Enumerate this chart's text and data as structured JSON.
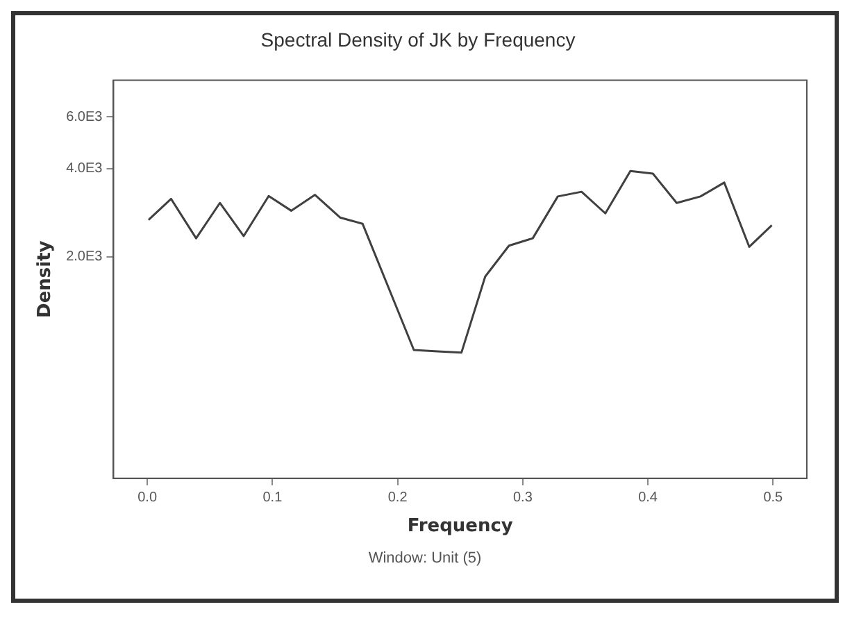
{
  "chart_data": {
    "type": "line",
    "title": "Spectral Density of JK by Frequency",
    "xlabel": "Frequency",
    "ylabel": "Density",
    "annotations": [
      "Window: Unit (5)"
    ],
    "x": [
      0.001,
      0.019,
      0.039,
      0.058,
      0.077,
      0.097,
      0.115,
      0.134,
      0.154,
      0.172,
      0.213,
      0.232,
      0.251,
      0.27,
      0.289,
      0.308,
      0.328,
      0.347,
      0.366,
      0.386,
      0.404,
      0.423,
      0.442,
      0.461,
      0.481,
      0.499
    ],
    "series": [
      {
        "color": "#404040",
        "values": [
          2670,
          3150,
          2310,
          3050,
          2350,
          3220,
          2870,
          3250,
          2720,
          2590,
          960,
          950,
          940,
          1710,
          2180,
          2310,
          3210,
          3330,
          2810,
          3920,
          3840,
          3050,
          3210,
          3580,
          2160,
          2560
        ]
      }
    ],
    "log": "y",
    "xlim": [
      -0.027,
      0.527
    ],
    "ylim": [
      350,
      8000
    ],
    "xticks": [
      {
        "value": 0,
        "label": "0.0"
      },
      {
        "value": 0.1,
        "label": "0.1"
      },
      {
        "value": 0.2,
        "label": "0.2"
      },
      {
        "value": 0.3,
        "label": "0.3"
      },
      {
        "value": 0.4,
        "label": "0.4"
      },
      {
        "value": 0.5,
        "label": "0.5"
      }
    ],
    "yticks": [
      {
        "value": 2000,
        "label": "2.0E3"
      },
      {
        "value": 4000,
        "label": "4.0E3"
      },
      {
        "value": 6000,
        "label": "6.0E3"
      }
    ],
    "grid": false,
    "legend": false,
    "marker": "none",
    "line_style": "solid"
  }
}
